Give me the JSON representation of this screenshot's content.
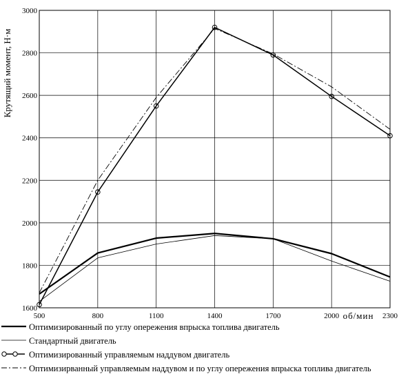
{
  "chart_data": {
    "type": "line",
    "title": "",
    "ylabel": "Крутящий момент, Н·м",
    "xlabel": "об/мин",
    "x": [
      500,
      800,
      1100,
      1400,
      1700,
      2000,
      2300
    ],
    "xticks": [
      "500",
      "800",
      "1100",
      "1400",
      "1700",
      "2000",
      "2300"
    ],
    "yticks": [
      "1600",
      "1800",
      "2000",
      "2200",
      "2400",
      "2600",
      "2800",
      "3000"
    ],
    "xlim": [
      500,
      2300
    ],
    "ylim": [
      1600,
      3000
    ],
    "grid": true,
    "legend_position": "bottom",
    "series": [
      {
        "name": "Оптимизированный по углу опережения впрыска топлива двигатель",
        "style": "thick-solid",
        "values": [
          1665,
          1858,
          1928,
          1950,
          1925,
          1855,
          1745
        ]
      },
      {
        "name": "Стандартный двигатель",
        "style": "thin-solid",
        "values": [
          1630,
          1835,
          1900,
          1940,
          1925,
          1820,
          1725
        ]
      },
      {
        "name": "Оптимизированный управляемым наддувом двигатель",
        "style": "solid-circle-markers",
        "values": [
          1615,
          2145,
          2550,
          2920,
          2790,
          2595,
          2410
        ]
      },
      {
        "name": "Оптимизирванный управляемым наддувом и по углу опережения впрыска топлива двигатель",
        "style": "dash-dot",
        "values": [
          1670,
          2200,
          2590,
          2915,
          2795,
          2640,
          2440
        ]
      }
    ]
  }
}
